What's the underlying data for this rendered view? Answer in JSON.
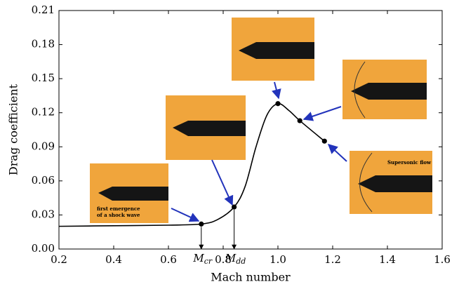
{
  "chart_data": {
    "type": "line",
    "xlabel": "Mach number",
    "ylabel": "Drag coefficient",
    "x": [
      0.2,
      0.4,
      0.6,
      0.72,
      0.78,
      0.84,
      0.88,
      0.92,
      0.96,
      1.0,
      1.04,
      1.08,
      1.17
    ],
    "values": [
      0.02,
      0.0205,
      0.021,
      0.022,
      0.026,
      0.037,
      0.055,
      0.09,
      0.118,
      0.128,
      0.122,
      0.113,
      0.095
    ],
    "color": "#000000",
    "markers": {
      "x": [
        0.72,
        0.84,
        1.0,
        1.08,
        1.17
      ],
      "values": [
        0.022,
        0.037,
        0.128,
        0.113,
        0.095
      ]
    },
    "xlim": [
      0.2,
      1.6
    ],
    "ylim": [
      0,
      0.21
    ],
    "xticks": [
      0.2,
      0.4,
      0.6,
      0.8,
      {
        "value": 1,
        "label": "1.0"
      },
      1.2,
      1.4,
      1.6
    ],
    "yticks": [
      {
        "value": 0,
        "label": "0.00"
      },
      0.03,
      0.06,
      0.09,
      0.12,
      0.15,
      0.18,
      0.21
    ],
    "annotations": [
      {
        "x": 0.72,
        "label": "M",
        "subscript": "cr"
      },
      {
        "x": 0.84,
        "label": "M",
        "subscript": "dd"
      }
    ],
    "photo_texts": [
      [
        "first emergence",
        "of a shock wave"
      ],
      [
        "Supersonic flow"
      ]
    ]
  }
}
